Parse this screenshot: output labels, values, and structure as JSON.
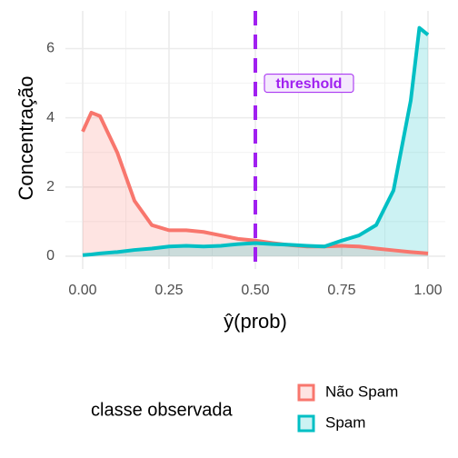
{
  "chart_data": {
    "type": "density",
    "x_label": "ŷ(prob)",
    "y_label": "Concentração",
    "x": [
      0,
      0.025,
      0.05,
      0.1,
      0.15,
      0.2,
      0.25,
      0.3,
      0.35,
      0.4,
      0.45,
      0.5,
      0.55,
      0.6,
      0.65,
      0.7,
      0.75,
      0.8,
      0.85,
      0.9,
      0.95,
      0.975,
      1
    ],
    "series": [
      {
        "name": "Não Spam",
        "color": "#F8766D",
        "values": [
          3.6,
          4.15,
          4.05,
          3.0,
          1.6,
          0.9,
          0.75,
          0.75,
          0.7,
          0.6,
          0.5,
          0.45,
          0.38,
          0.32,
          0.28,
          0.28,
          0.3,
          0.28,
          0.22,
          0.17,
          0.12,
          0.1,
          0.08
        ]
      },
      {
        "name": "Spam",
        "color": "#00BFC4",
        "values": [
          0.03,
          0.05,
          0.08,
          0.12,
          0.18,
          0.22,
          0.28,
          0.3,
          0.28,
          0.3,
          0.35,
          0.38,
          0.35,
          0.33,
          0.3,
          0.28,
          0.45,
          0.6,
          0.9,
          1.9,
          4.5,
          6.6,
          6.4
        ]
      }
    ],
    "xlim": [
      -0.05,
      1.05
    ],
    "ylim": [
      -0.37,
      7.09
    ],
    "xticks": [
      {
        "value": 0,
        "label": "0.00"
      },
      {
        "value": 0.25,
        "label": "0.25"
      },
      {
        "value": 0.5,
        "label": "0.50"
      },
      {
        "value": 0.75,
        "label": "0.75"
      },
      {
        "value": 1,
        "label": "1.00"
      }
    ],
    "yticks": [
      0,
      2,
      4,
      6
    ],
    "grid": true,
    "legend": {
      "title": "classe observada",
      "position": "bottom"
    },
    "threshold": {
      "x": 0.5,
      "label": "threshold",
      "label_y": 5,
      "color": "#A020F0"
    }
  }
}
